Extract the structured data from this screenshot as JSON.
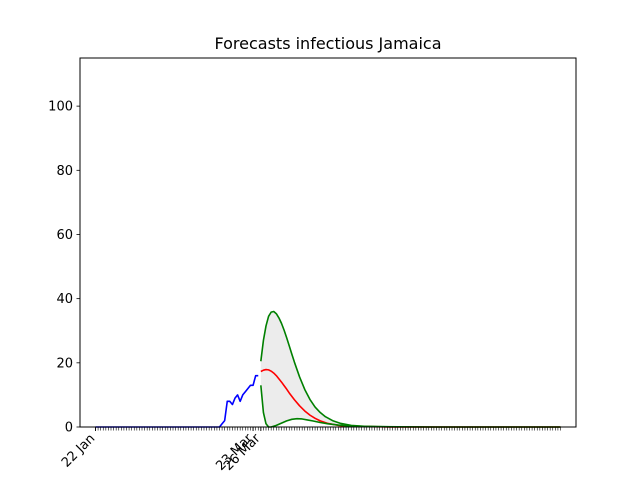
{
  "chart_data": {
    "type": "line",
    "title": "Forecasts infectious Jamaica",
    "xlabel": "",
    "ylabel": "",
    "x_axis": "date",
    "xlim": [
      "2020-01-16",
      "2020-07-26"
    ],
    "ylim": [
      0,
      115
    ],
    "yticks": [
      0,
      20,
      40,
      60,
      80,
      100
    ],
    "xtick_labels": [
      {
        "date": "2020-01-22",
        "label": "22 Jan"
      },
      {
        "date": "2020-03-23",
        "label": "23 Mar"
      },
      {
        "date": "2020-03-26",
        "label": "26 Mar"
      }
    ],
    "minor_ticks": {
      "start": "2020-01-22",
      "end": "2020-07-20",
      "every_days": 1
    },
    "grid": false,
    "legend": "none",
    "series": [
      {
        "role": "observed",
        "color": "#0000ff",
        "points": [
          [
            "2020-01-22",
            0
          ],
          [
            "2020-02-15",
            0
          ],
          [
            "2020-03-09",
            0
          ],
          [
            "2020-03-10",
            0
          ],
          [
            "2020-03-11",
            1
          ],
          [
            "2020-03-12",
            2
          ],
          [
            "2020-03-13",
            8
          ],
          [
            "2020-03-14",
            8
          ],
          [
            "2020-03-15",
            7
          ],
          [
            "2020-03-16",
            9
          ],
          [
            "2020-03-17",
            10
          ],
          [
            "2020-03-18",
            8
          ],
          [
            "2020-03-19",
            10
          ],
          [
            "2020-03-20",
            11
          ],
          [
            "2020-03-21",
            12
          ],
          [
            "2020-03-22",
            13
          ],
          [
            "2020-03-23",
            13
          ],
          [
            "2020-03-24",
            16
          ],
          [
            "2020-03-25",
            16
          ]
        ]
      },
      {
        "role": "forecast-upper",
        "color": "#008000",
        "points": [
          [
            "2020-03-26",
            20.5
          ],
          [
            "2020-03-27",
            27
          ],
          [
            "2020-03-28",
            31.5
          ],
          [
            "2020-03-29",
            34.5
          ],
          [
            "2020-03-30",
            35.8
          ],
          [
            "2020-03-31",
            36
          ],
          [
            "2020-04-01",
            35.3
          ],
          [
            "2020-04-02",
            34
          ],
          [
            "2020-04-03",
            32.3
          ],
          [
            "2020-04-04",
            30.2
          ],
          [
            "2020-04-05",
            27.8
          ],
          [
            "2020-04-06",
            25.3
          ],
          [
            "2020-04-07",
            22.7
          ],
          [
            "2020-04-08",
            20.2
          ],
          [
            "2020-04-10",
            15.6
          ],
          [
            "2020-04-12",
            11.7
          ],
          [
            "2020-04-14",
            8.6
          ],
          [
            "2020-04-16",
            6.2
          ],
          [
            "2020-04-18",
            4.5
          ],
          [
            "2020-04-20",
            3.2
          ],
          [
            "2020-04-23",
            1.9
          ],
          [
            "2020-04-26",
            1.1
          ],
          [
            "2020-04-30",
            0.5
          ],
          [
            "2020-05-05",
            0.2
          ],
          [
            "2020-05-15",
            0.05
          ],
          [
            "2020-06-01",
            0
          ],
          [
            "2020-07-20",
            0
          ]
        ]
      },
      {
        "role": "forecast-mean",
        "color": "#ff0000",
        "points": [
          [
            "2020-03-26",
            17.3
          ],
          [
            "2020-03-27",
            17.7
          ],
          [
            "2020-03-28",
            17.9
          ],
          [
            "2020-03-29",
            17.8
          ],
          [
            "2020-03-30",
            17.4
          ],
          [
            "2020-03-31",
            16.8
          ],
          [
            "2020-04-01",
            16
          ],
          [
            "2020-04-02",
            15
          ],
          [
            "2020-04-03",
            14
          ],
          [
            "2020-04-04",
            12.9
          ],
          [
            "2020-04-05",
            11.8
          ],
          [
            "2020-04-06",
            10.6
          ],
          [
            "2020-04-08",
            8.5
          ],
          [
            "2020-04-10",
            6.6
          ],
          [
            "2020-04-12",
            5
          ],
          [
            "2020-04-14",
            3.7
          ],
          [
            "2020-04-16",
            2.7
          ],
          [
            "2020-04-18",
            1.9
          ],
          [
            "2020-04-21",
            1.1
          ],
          [
            "2020-04-25",
            0.5
          ],
          [
            "2020-05-01",
            0.15
          ],
          [
            "2020-05-15",
            0.02
          ],
          [
            "2020-06-01",
            0
          ],
          [
            "2020-07-20",
            0
          ]
        ]
      },
      {
        "role": "forecast-lower",
        "color": "#008000",
        "points": [
          [
            "2020-03-26",
            13
          ],
          [
            "2020-03-27",
            4.5
          ],
          [
            "2020-03-28",
            1
          ],
          [
            "2020-03-29",
            0
          ],
          [
            "2020-03-30",
            0
          ],
          [
            "2020-04-01",
            0.5
          ],
          [
            "2020-04-03",
            1.2
          ],
          [
            "2020-04-05",
            1.9
          ],
          [
            "2020-04-07",
            2.4
          ],
          [
            "2020-04-09",
            2.6
          ],
          [
            "2020-04-11",
            2.5
          ],
          [
            "2020-04-13",
            2.2
          ],
          [
            "2020-04-15",
            1.9
          ],
          [
            "2020-04-18",
            1.4
          ],
          [
            "2020-04-21",
            1
          ],
          [
            "2020-04-25",
            0.6
          ],
          [
            "2020-04-30",
            0.3
          ],
          [
            "2020-05-10",
            0.1
          ],
          [
            "2020-06-01",
            0
          ],
          [
            "2020-07-20",
            0
          ]
        ]
      }
    ],
    "band": {
      "fill": "#d9d9d9",
      "opacity": 0.5,
      "between": [
        "forecast-lower",
        "forecast-upper"
      ]
    }
  }
}
